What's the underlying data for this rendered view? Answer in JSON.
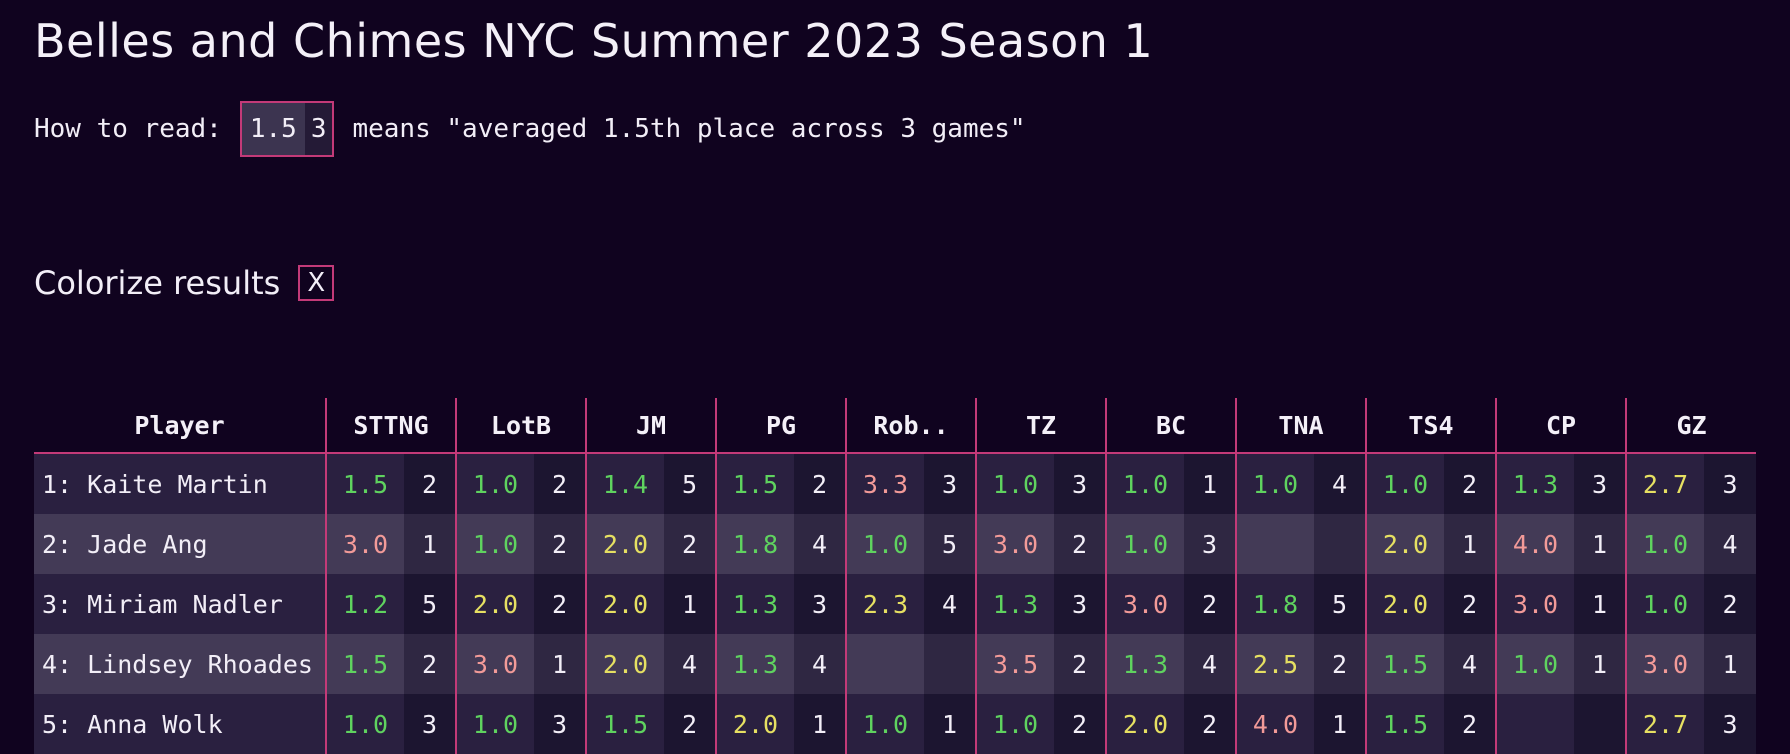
{
  "title": "Belles and Chimes NYC Summer 2023 Season 1",
  "howto": {
    "prefix": "How to read:",
    "example_avg": "1.5",
    "example_count": "3",
    "suffix": "means \"averaged 1.5th place across 3 games\""
  },
  "colorize": {
    "label": "Colorize results",
    "toggle_text": "X"
  },
  "colors": {
    "accent": "#c33a78",
    "good": "#5fd35f",
    "mid": "#e6e062",
    "bad": "#f29a98",
    "background": "#10031f"
  },
  "table": {
    "player_header": "Player",
    "games": [
      "STTNG",
      "LotB",
      "JM",
      "PG",
      "Rob..",
      "TZ",
      "BC",
      "TNA",
      "TS4",
      "CP",
      "GZ"
    ],
    "rows": [
      {
        "player": "1: Kaite Martin",
        "cells": [
          [
            "1.5",
            "2"
          ],
          [
            "1.0",
            "2"
          ],
          [
            "1.4",
            "5"
          ],
          [
            "1.5",
            "2"
          ],
          [
            "3.3",
            "3"
          ],
          [
            "1.0",
            "3"
          ],
          [
            "1.0",
            "1"
          ],
          [
            "1.0",
            "4"
          ],
          [
            "1.0",
            "2"
          ],
          [
            "1.3",
            "3"
          ],
          [
            "2.7",
            "3"
          ]
        ]
      },
      {
        "player": "2: Jade Ang",
        "cells": [
          [
            "3.0",
            "1"
          ],
          [
            "1.0",
            "2"
          ],
          [
            "2.0",
            "2"
          ],
          [
            "1.8",
            "4"
          ],
          [
            "1.0",
            "5"
          ],
          [
            "3.0",
            "2"
          ],
          [
            "1.0",
            "3"
          ],
          [
            "",
            ""
          ],
          [
            "2.0",
            "1"
          ],
          [
            "4.0",
            "1"
          ],
          [
            "1.0",
            "4"
          ]
        ]
      },
      {
        "player": "3: Miriam Nadler",
        "cells": [
          [
            "1.2",
            "5"
          ],
          [
            "2.0",
            "2"
          ],
          [
            "2.0",
            "1"
          ],
          [
            "1.3",
            "3"
          ],
          [
            "2.3",
            "4"
          ],
          [
            "1.3",
            "3"
          ],
          [
            "3.0",
            "2"
          ],
          [
            "1.8",
            "5"
          ],
          [
            "2.0",
            "2"
          ],
          [
            "3.0",
            "1"
          ],
          [
            "1.0",
            "2"
          ]
        ]
      },
      {
        "player": "4: Lindsey Rhoades",
        "cells": [
          [
            "1.5",
            "2"
          ],
          [
            "3.0",
            "1"
          ],
          [
            "2.0",
            "4"
          ],
          [
            "1.3",
            "4"
          ],
          [
            "",
            ""
          ],
          [
            "3.5",
            "2"
          ],
          [
            "1.3",
            "4"
          ],
          [
            "2.5",
            "2"
          ],
          [
            "1.5",
            "4"
          ],
          [
            "1.0",
            "1"
          ],
          [
            "3.0",
            "1"
          ]
        ]
      },
      {
        "player": "5: Anna Wolk",
        "cells": [
          [
            "1.0",
            "3"
          ],
          [
            "1.0",
            "3"
          ],
          [
            "1.5",
            "2"
          ],
          [
            "2.0",
            "1"
          ],
          [
            "1.0",
            "1"
          ],
          [
            "1.0",
            "2"
          ],
          [
            "2.0",
            "2"
          ],
          [
            "4.0",
            "1"
          ],
          [
            "1.5",
            "2"
          ],
          [
            "",
            ""
          ],
          [
            "2.7",
            "3"
          ]
        ]
      }
    ]
  }
}
